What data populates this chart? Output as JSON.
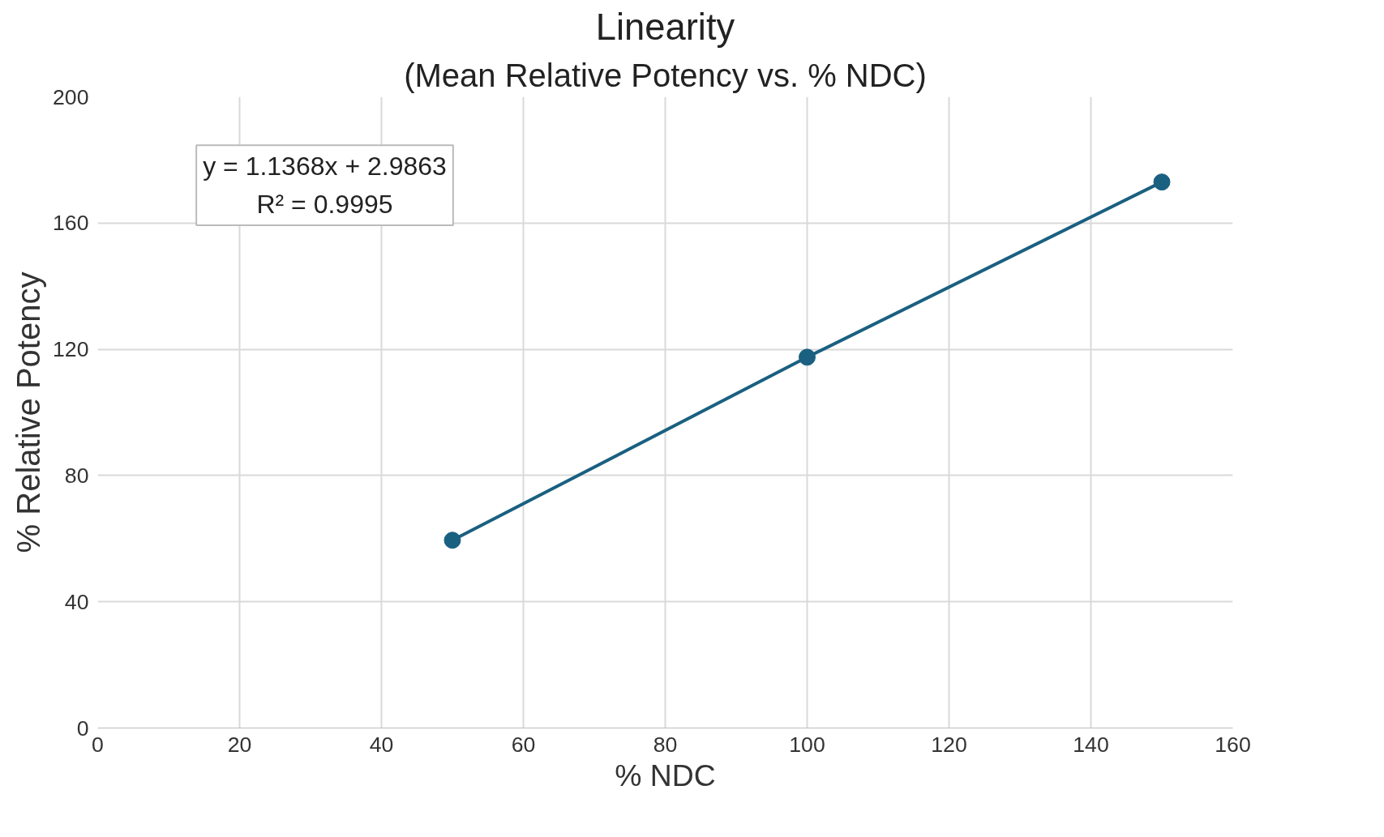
{
  "chart_data": {
    "type": "line",
    "title": "Linearity",
    "subtitle": "(Mean Relative Potency vs. % NDC)",
    "xlabel": "% NDC",
    "ylabel": "% Relative Potency",
    "x": [
      50,
      100,
      150
    ],
    "series": [
      {
        "color": "#1a6080",
        "values": [
          59.5,
          117.5,
          173
        ]
      }
    ],
    "xlim": [
      0,
      160
    ],
    "xticks": [
      0,
      20,
      40,
      60,
      80,
      100,
      120,
      140,
      160
    ],
    "ylim": [
      0,
      200
    ],
    "yticks": [
      0,
      40,
      80,
      120,
      160,
      200
    ],
    "annotations": [
      "y = 1.1368x + 2.9863",
      "R² = 0.9995"
    ],
    "grid": true,
    "marker": "circle",
    "line_style": "solid"
  }
}
